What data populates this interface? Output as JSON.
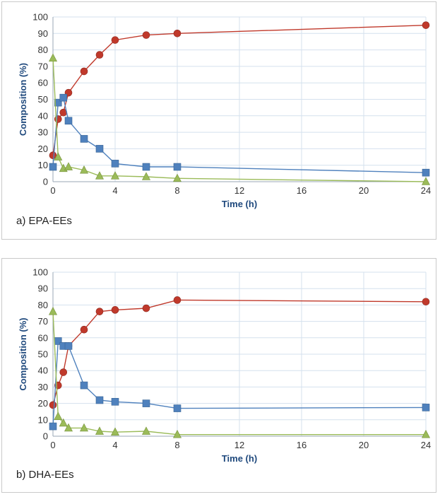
{
  "chart_data": [
    {
      "type": "scatter",
      "panel_label": "a) EPA-EEs",
      "xlabel": "Time (h)",
      "ylabel": "Composition (%)",
      "xlim": [
        0,
        24
      ],
      "ylim": [
        0,
        100
      ],
      "xticks": [
        0,
        4,
        8,
        12,
        16,
        20,
        24
      ],
      "yticks": [
        0,
        10,
        20,
        30,
        40,
        50,
        60,
        70,
        80,
        90,
        100
      ],
      "grid": true,
      "legend": "none",
      "series": [
        {
          "color": "#c0392b",
          "marker": "circle",
          "x": [
            0,
            0.33,
            0.67,
            1,
            2,
            3,
            4,
            6,
            8,
            24
          ],
          "y": [
            16,
            38,
            42,
            54,
            67,
            77,
            86,
            89,
            90,
            95
          ]
        },
        {
          "color": "#4f81bd",
          "marker": "square",
          "x": [
            0,
            0.33,
            0.67,
            1,
            2,
            3,
            4,
            6,
            8,
            24
          ],
          "y": [
            9,
            48,
            51,
            37,
            26,
            20,
            11,
            9,
            9,
            5.5
          ]
        },
        {
          "color": "#9bbb59",
          "marker": "triangle",
          "x": [
            0,
            0.33,
            0.67,
            1,
            2,
            3,
            4,
            6,
            8,
            24
          ],
          "y": [
            75,
            15,
            8,
            9,
            7,
            3.5,
            3.5,
            3,
            2,
            0
          ]
        }
      ]
    },
    {
      "type": "scatter",
      "panel_label": "b) DHA-EEs",
      "xlabel": "Time (h)",
      "ylabel": "Composition (%)",
      "xlim": [
        0,
        24
      ],
      "ylim": [
        0,
        100
      ],
      "xticks": [
        0,
        4,
        8,
        12,
        16,
        20,
        24
      ],
      "yticks": [
        0,
        10,
        20,
        30,
        40,
        50,
        60,
        70,
        80,
        90,
        100
      ],
      "grid": true,
      "legend": "none",
      "series": [
        {
          "color": "#c0392b",
          "marker": "circle",
          "x": [
            0,
            0.33,
            0.67,
            1,
            2,
            3,
            4,
            6,
            8,
            24
          ],
          "y": [
            19,
            31,
            39,
            55,
            65,
            76,
            77,
            78,
            83,
            82
          ]
        },
        {
          "color": "#4f81bd",
          "marker": "square",
          "x": [
            0,
            0.33,
            0.67,
            1,
            2,
            3,
            4,
            6,
            8,
            24
          ],
          "y": [
            6,
            58,
            55,
            55,
            31,
            22,
            21,
            20,
            17,
            17.5
          ]
        },
        {
          "color": "#9bbb59",
          "marker": "triangle",
          "x": [
            0,
            0.33,
            0.67,
            1,
            2,
            3,
            4,
            6,
            8,
            24
          ],
          "y": [
            76,
            12,
            8,
            5,
            5,
            3,
            2.5,
            3,
            1,
            1
          ]
        }
      ]
    }
  ]
}
